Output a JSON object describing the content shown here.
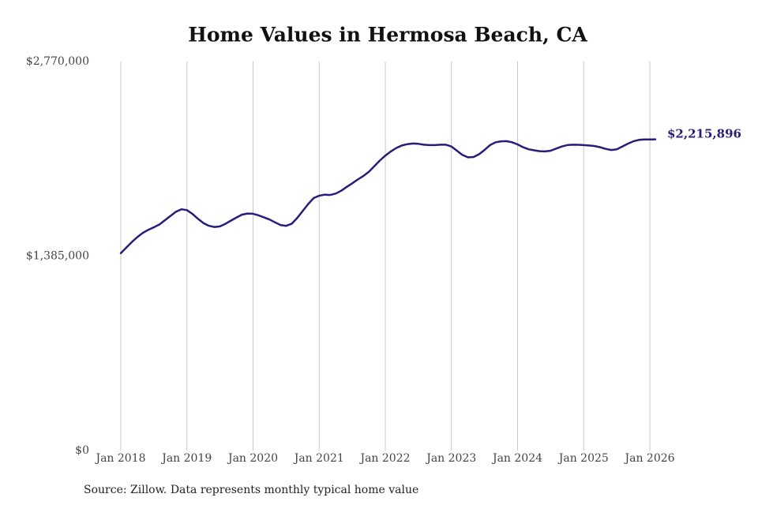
{
  "chart_data": {
    "type": "line",
    "title": "Home Values in Hermosa Beach, CA",
    "source": "Source: Zillow. Data represents monthly typical home value",
    "color": "#271d7a",
    "x": [
      "2018-01",
      "2018-02",
      "2018-03",
      "2018-04",
      "2018-05",
      "2018-06",
      "2018-07",
      "2018-08",
      "2018-09",
      "2018-10",
      "2018-11",
      "2018-12",
      "2019-01",
      "2019-02",
      "2019-03",
      "2019-04",
      "2019-05",
      "2019-06",
      "2019-07",
      "2019-08",
      "2019-09",
      "2019-10",
      "2019-11",
      "2019-12",
      "2020-01",
      "2020-02",
      "2020-03",
      "2020-04",
      "2020-05",
      "2020-06",
      "2020-07",
      "2020-08",
      "2020-09",
      "2020-10",
      "2020-11",
      "2020-12",
      "2021-01",
      "2021-02",
      "2021-03",
      "2021-04",
      "2021-05",
      "2021-06",
      "2021-07",
      "2021-08",
      "2021-09",
      "2021-10",
      "2021-11",
      "2021-12",
      "2022-01",
      "2022-02",
      "2022-03",
      "2022-04",
      "2022-05",
      "2022-06",
      "2022-07",
      "2022-08",
      "2022-09",
      "2022-10",
      "2022-11",
      "2022-12",
      "2023-01",
      "2023-02",
      "2023-03",
      "2023-04",
      "2023-05",
      "2023-06",
      "2023-07",
      "2023-08",
      "2023-09",
      "2023-10",
      "2023-11",
      "2023-12",
      "2024-01",
      "2024-02",
      "2024-03",
      "2024-04",
      "2024-05",
      "2024-06",
      "2024-07",
      "2024-08",
      "2024-09",
      "2024-10",
      "2024-11",
      "2024-12",
      "2025-01",
      "2025-02",
      "2025-03",
      "2025-04",
      "2025-05",
      "2025-06",
      "2025-07",
      "2025-08",
      "2025-09",
      "2025-10",
      "2025-11",
      "2025-12",
      "2026-01",
      "2026-02"
    ],
    "values": [
      1405000,
      1445000,
      1485000,
      1520000,
      1550000,
      1572000,
      1590000,
      1610000,
      1640000,
      1670000,
      1700000,
      1718000,
      1712000,
      1685000,
      1650000,
      1620000,
      1600000,
      1592000,
      1596000,
      1615000,
      1638000,
      1660000,
      1680000,
      1688000,
      1686000,
      1675000,
      1660000,
      1645000,
      1625000,
      1605000,
      1600000,
      1615000,
      1655000,
      1705000,
      1755000,
      1798000,
      1815000,
      1822000,
      1820000,
      1830000,
      1850000,
      1878000,
      1903000,
      1930000,
      1955000,
      1985000,
      2025000,
      2065000,
      2100000,
      2130000,
      2155000,
      2172000,
      2182000,
      2186000,
      2184000,
      2178000,
      2175000,
      2175000,
      2178000,
      2178000,
      2165000,
      2135000,
      2105000,
      2088000,
      2090000,
      2110000,
      2140000,
      2175000,
      2195000,
      2202000,
      2203000,
      2195000,
      2180000,
      2160000,
      2145000,
      2138000,
      2132000,
      2130000,
      2135000,
      2150000,
      2165000,
      2175000,
      2178000,
      2177000,
      2175000,
      2172000,
      2168000,
      2160000,
      2148000,
      2140000,
      2145000,
      2165000,
      2185000,
      2202000,
      2212000,
      2215000,
      2215000,
      2215896
    ],
    "value_labels": [
      null,
      null,
      null,
      null,
      null,
      null,
      null,
      null,
      null,
      null,
      null,
      null,
      null,
      null,
      null,
      null,
      null,
      null,
      null,
      null,
      null,
      null,
      null,
      null,
      null,
      null,
      null,
      null,
      null,
      null,
      null,
      null,
      null,
      null,
      null,
      null,
      null,
      null,
      null,
      null,
      null,
      null,
      null,
      null,
      null,
      null,
      null,
      null,
      null,
      null,
      null,
      null,
      null,
      null,
      null,
      null,
      null,
      null,
      null,
      null,
      null,
      null,
      null,
      null,
      null,
      null,
      null,
      null,
      null,
      null,
      null,
      null,
      null,
      null,
      null,
      null,
      null,
      null,
      null,
      null,
      null,
      null,
      null,
      null,
      null,
      null,
      null,
      null,
      null,
      null,
      null,
      null,
      null,
      null,
      null,
      null,
      null,
      "$2,215,896"
    ],
    "xlim": [
      "2018-01",
      "2026-02"
    ],
    "xticks": [
      {
        "value": "2018-01",
        "label": "Jan 2018"
      },
      {
        "value": "2019-01",
        "label": "Jan 2019"
      },
      {
        "value": "2020-01",
        "label": "Jan 2020"
      },
      {
        "value": "2021-01",
        "label": "Jan 2021"
      },
      {
        "value": "2022-01",
        "label": "Jan 2022"
      },
      {
        "value": "2023-01",
        "label": "Jan 2023"
      },
      {
        "value": "2024-01",
        "label": "Jan 2024"
      },
      {
        "value": "2025-01",
        "label": "Jan 2025"
      },
      {
        "value": "2026-01",
        "label": "Jan 2026"
      }
    ],
    "ylim": [
      0,
      2770000
    ],
    "yticks": [
      {
        "value": 0,
        "label": "$0"
      },
      {
        "value": 1385000,
        "label": "$1,385,000"
      },
      {
        "value": 2770000,
        "label": "$2,770,000"
      }
    ],
    "grid": "x"
  }
}
